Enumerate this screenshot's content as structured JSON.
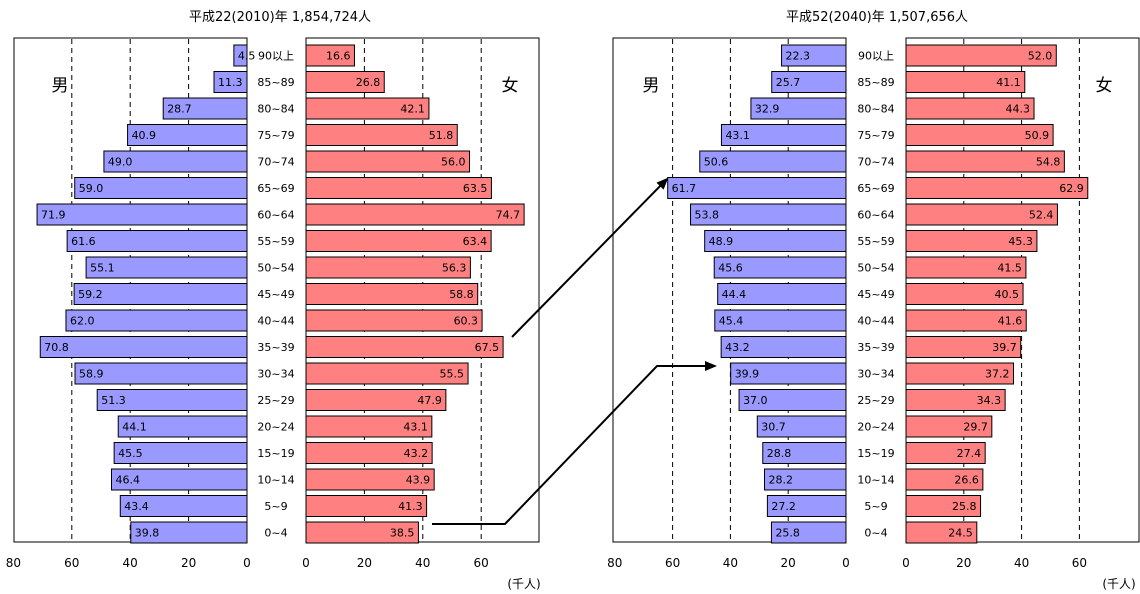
{
  "chart_data": [
    {
      "type": "bar",
      "title": "平成22(2010)年 1,854,724人",
      "left_label": "男",
      "right_label": "女",
      "unit": "(千人)",
      "categories": [
        "90以上",
        "85~89",
        "80~84",
        "75~79",
        "70~74",
        "65~69",
        "60~64",
        "55~59",
        "50~54",
        "45~49",
        "40~44",
        "35~39",
        "30~34",
        "25~29",
        "20~24",
        "15~19",
        "10~14",
        "5~9",
        "0~4"
      ],
      "series": [
        {
          "name": "男",
          "values": [
            4.5,
            11.3,
            28.7,
            40.9,
            49.0,
            59.0,
            71.9,
            61.6,
            55.1,
            59.2,
            62.0,
            70.8,
            58.9,
            51.3,
            44.1,
            45.5,
            46.4,
            43.4,
            39.8
          ]
        },
        {
          "name": "女",
          "values": [
            16.6,
            26.8,
            42.1,
            51.8,
            56.0,
            63.5,
            74.7,
            63.4,
            56.3,
            58.8,
            60.3,
            67.5,
            55.5,
            47.9,
            43.1,
            43.2,
            43.9,
            41.3,
            38.5
          ]
        }
      ],
      "male_axis_ticks": [
        "80",
        "60",
        "40",
        "20",
        "0"
      ],
      "female_axis_ticks": [
        "0",
        "20",
        "40",
        "60"
      ],
      "xlim": [
        0,
        80
      ],
      "colors": {
        "male": "#9999ff",
        "female": "#ff8080"
      }
    },
    {
      "type": "bar",
      "title": "平成52(2040)年 1,507,656人",
      "left_label": "男",
      "right_label": "女",
      "unit": "(千人)",
      "categories": [
        "90以上",
        "85~89",
        "80~84",
        "75~79",
        "70~74",
        "65~69",
        "60~64",
        "55~59",
        "50~54",
        "45~49",
        "40~44",
        "35~39",
        "30~34",
        "25~29",
        "20~24",
        "15~19",
        "10~14",
        "5~9",
        "0~4"
      ],
      "series": [
        {
          "name": "男",
          "values": [
            22.3,
            25.7,
            32.9,
            43.1,
            50.6,
            61.7,
            53.8,
            48.9,
            45.6,
            44.4,
            45.4,
            43.2,
            39.9,
            37.0,
            30.7,
            28.8,
            28.2,
            27.2,
            25.8
          ]
        },
        {
          "name": "女",
          "values": [
            52.0,
            41.1,
            44.3,
            50.9,
            54.8,
            62.9,
            52.4,
            45.3,
            41.5,
            40.5,
            41.6,
            39.7,
            37.2,
            34.3,
            29.7,
            27.4,
            26.6,
            25.8,
            24.5
          ]
        }
      ],
      "male_axis_ticks": [
        "80",
        "60",
        "40",
        "20",
        "0"
      ],
      "female_axis_ticks": [
        "0",
        "20",
        "40",
        "60"
      ],
      "xlim": [
        0,
        80
      ],
      "colors": {
        "male": "#9999ff",
        "female": "#ff8080"
      }
    }
  ]
}
